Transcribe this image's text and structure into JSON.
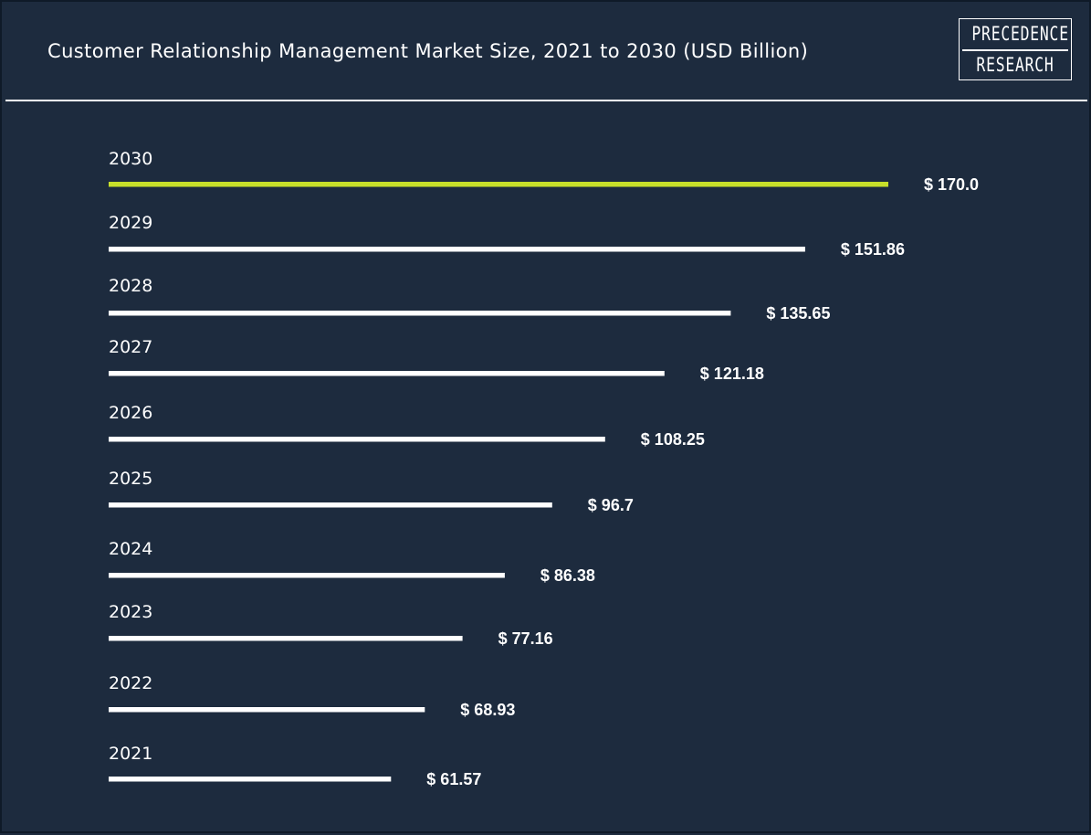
{
  "header": {
    "title": "Customer Relationship Management Market Size, 2021 to 2030 (USD Billion)",
    "logo": {
      "line1": "PRECEDENCE",
      "line2": "RESEARCH"
    }
  },
  "colors": {
    "background": "#1d2b3e",
    "bar_default": "#ffffff",
    "bar_highlight": "#c8e02a",
    "text": "#ffffff"
  },
  "chart_data": {
    "type": "bar",
    "orientation": "horizontal",
    "title": "Customer Relationship Management Market Size, 2021 to 2030 (USD Billion)",
    "xlabel": "",
    "ylabel": "",
    "value_prefix": "$ ",
    "categories": [
      "2030",
      "2029",
      "2028",
      "2027",
      "2026",
      "2025",
      "2024",
      "2023",
      "2022",
      "2021"
    ],
    "values": [
      170.0,
      151.86,
      135.65,
      121.18,
      108.25,
      96.7,
      86.38,
      77.16,
      68.93,
      61.57
    ],
    "value_labels": [
      "$ 170.0",
      "$ 151.86",
      "$ 135.65",
      "$ 121.18",
      "$ 108.25",
      "$ 96.7",
      "$ 86.38",
      "$ 77.16",
      "$ 68.93",
      "$ 61.57"
    ],
    "highlight_category": "2030",
    "grid": false,
    "legend": "none"
  }
}
